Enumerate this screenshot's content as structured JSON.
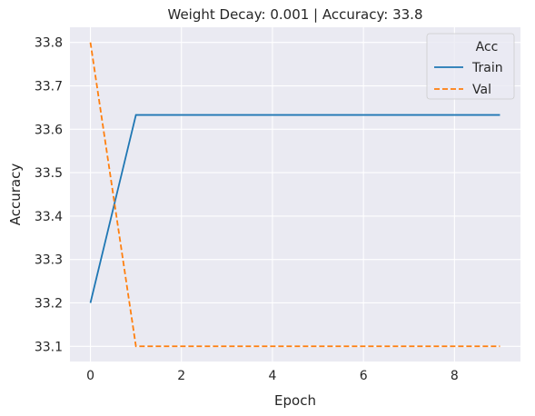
{
  "chart_data": {
    "type": "line",
    "title": "Weight Decay: 0.001 | Accuracy: 33.8",
    "xlabel": "Epoch",
    "ylabel": "Accuracy",
    "x": [
      0,
      1,
      2,
      3,
      4,
      5,
      6,
      7,
      8,
      9
    ],
    "xlim": [
      -0.45,
      9.45
    ],
    "ylim": [
      33.065,
      33.835
    ],
    "xticks": [
      0,
      2,
      4,
      6,
      8
    ],
    "xtick_labels": [
      "0",
      "2",
      "4",
      "6",
      "8"
    ],
    "yticks": [
      33.1,
      33.2,
      33.3,
      33.4,
      33.5,
      33.6,
      33.7,
      33.8
    ],
    "ytick_labels": [
      "33.1",
      "33.2",
      "33.3",
      "33.4",
      "33.5",
      "33.6",
      "33.7",
      "33.8"
    ],
    "grid": true,
    "legend": {
      "title": "Acc",
      "placement": "top-right"
    },
    "series": [
      {
        "name": "Train",
        "style": "solid",
        "color": "#1f77b4",
        "values": [
          33.2,
          33.633,
          33.633,
          33.633,
          33.633,
          33.633,
          33.633,
          33.633,
          33.633,
          33.633
        ]
      },
      {
        "name": "Val",
        "style": "dashed",
        "color": "#ff7f0e",
        "values": [
          33.8,
          33.1,
          33.1,
          33.1,
          33.1,
          33.1,
          33.1,
          33.1,
          33.1,
          33.1
        ]
      }
    ],
    "colors": {
      "plot_background": "#eaeaf2",
      "grid": "#ffffff",
      "text": "#262626"
    }
  }
}
